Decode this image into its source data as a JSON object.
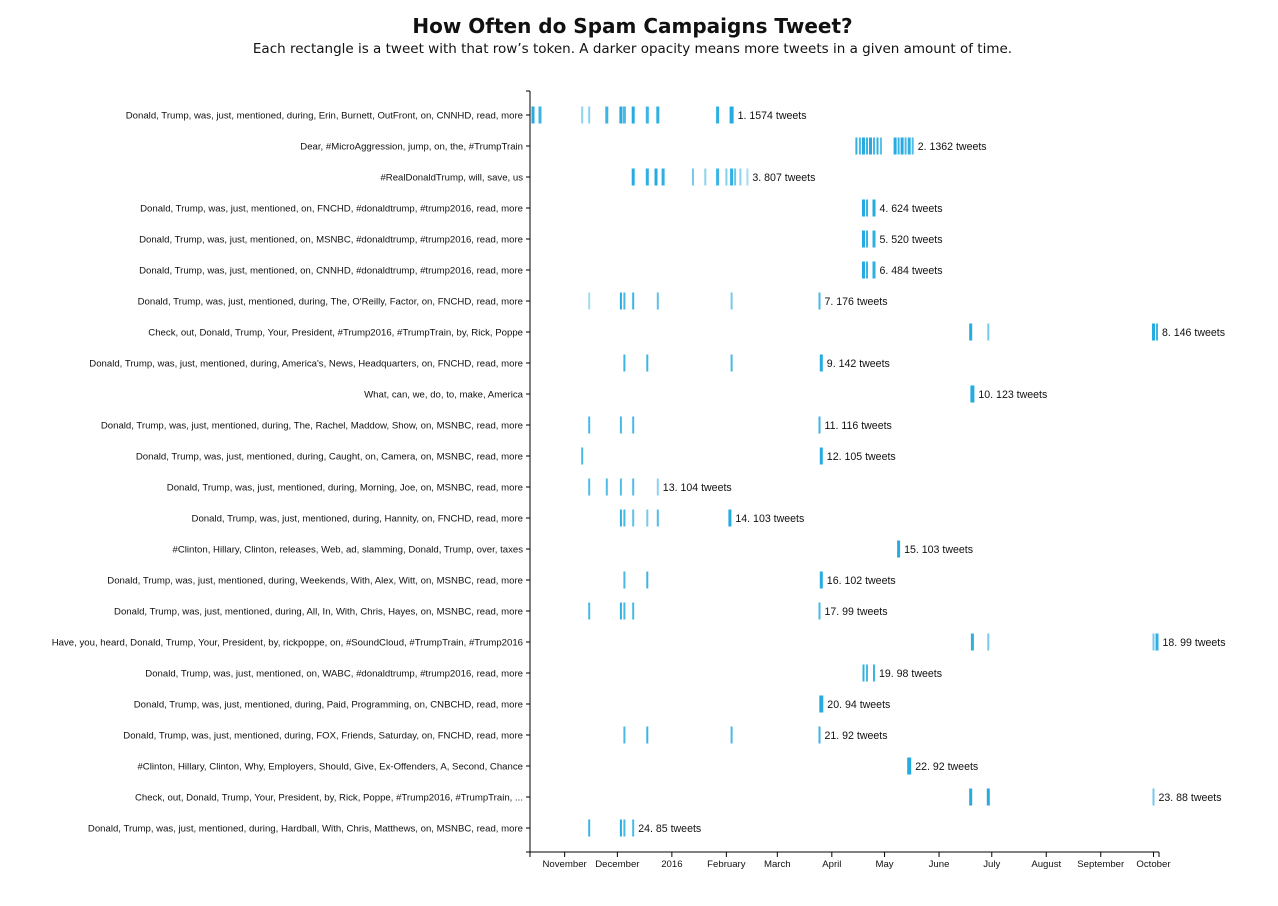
{
  "chart_data": {
    "type": "timeline-strip",
    "title": "How Often do Spam Campaigns Tweet?",
    "subtitle": "Each rectangle is a tweet with that row’s token. A darker opacity means more tweets in a given amount of time.",
    "x_axis": {
      "ticks": [
        "November",
        "December",
        "2016",
        "February",
        "March",
        "April",
        "May",
        "June",
        "July",
        "August",
        "September",
        "October"
      ],
      "range": [
        "2015-10-14",
        "2016-10-03"
      ]
    },
    "mark_color": "#1aa7df",
    "rows": [
      {
        "label": "Donald, Trump, was, just, mentioned, during, Erin, Burnett, OutFront, on, CNNHD, read, more",
        "count_label": "1. 1574 tweets",
        "ticks": [
          [
            "2015-10-14",
            0.95,
            3
          ],
          [
            "2015-10-18",
            0.85,
            3
          ],
          [
            "2015-11-11",
            0.5,
            2
          ],
          [
            "2015-11-15",
            0.5,
            2
          ],
          [
            "2015-11-25",
            0.85,
            3
          ],
          [
            "2015-12-03",
            0.95,
            3
          ],
          [
            "2015-12-05",
            0.8,
            3
          ],
          [
            "2015-12-10",
            0.95,
            3
          ],
          [
            "2015-12-18",
            0.85,
            3
          ],
          [
            "2015-12-24",
            0.9,
            3
          ],
          [
            "2016-01-27",
            0.9,
            3
          ],
          [
            "2016-02-04",
            0.95,
            4
          ]
        ]
      },
      {
        "label": "Dear, #MicroAggression, jump, on, the, #TrumpTrain",
        "count_label": "2. 1362 tweets",
        "ticks": [
          [
            "2016-04-15",
            0.9,
            2
          ],
          [
            "2016-04-17",
            0.8,
            2
          ],
          [
            "2016-04-19",
            0.95,
            3
          ],
          [
            "2016-04-21",
            0.85,
            2
          ],
          [
            "2016-04-23",
            0.95,
            3
          ],
          [
            "2016-04-25",
            0.8,
            2
          ],
          [
            "2016-04-27",
            0.9,
            2
          ],
          [
            "2016-04-29",
            0.7,
            2
          ],
          [
            "2016-05-07",
            0.95,
            3
          ],
          [
            "2016-05-09",
            0.85,
            2
          ],
          [
            "2016-05-11",
            0.95,
            3
          ],
          [
            "2016-05-13",
            0.8,
            2
          ],
          [
            "2016-05-15",
            0.9,
            3
          ],
          [
            "2016-05-17",
            0.75,
            2
          ]
        ]
      },
      {
        "label": "#RealDonaldTrump, will, save, us",
        "count_label": "3. 807 tweets",
        "ticks": [
          [
            "2015-12-10",
            0.95,
            3
          ],
          [
            "2015-12-18",
            0.9,
            3
          ],
          [
            "2015-12-23",
            0.95,
            3
          ],
          [
            "2015-12-27",
            0.9,
            3
          ],
          [
            "2016-01-13",
            0.6,
            2
          ],
          [
            "2016-01-20",
            0.5,
            2
          ],
          [
            "2016-01-27",
            0.85,
            3
          ],
          [
            "2016-02-01",
            0.55,
            2
          ],
          [
            "2016-02-04",
            0.9,
            3
          ],
          [
            "2016-02-06",
            0.65,
            2
          ],
          [
            "2016-02-09",
            0.5,
            2
          ],
          [
            "2016-02-13",
            0.4,
            2
          ]
        ]
      },
      {
        "label": "Donald, Trump, was, just, mentioned, on, FNCHD, #donaldtrump, #trump2016, read, more",
        "count_label": "4. 624 tweets",
        "ticks": [
          [
            "2016-04-19",
            0.95,
            3
          ],
          [
            "2016-04-21",
            0.85,
            2
          ],
          [
            "2016-04-25",
            0.95,
            3
          ]
        ]
      },
      {
        "label": "Donald, Trump, was, just, mentioned, on, MSNBC, #donaldtrump, #trump2016, read, more",
        "count_label": "5. 520 tweets",
        "ticks": [
          [
            "2016-04-19",
            0.95,
            3
          ],
          [
            "2016-04-21",
            0.85,
            2
          ],
          [
            "2016-04-25",
            0.9,
            3
          ]
        ]
      },
      {
        "label": "Donald, Trump, was, just, mentioned, on, CNNHD, #donaldtrump, #trump2016, read, more",
        "count_label": "6. 484 tweets",
        "ticks": [
          [
            "2016-04-19",
            0.95,
            3
          ],
          [
            "2016-04-21",
            0.85,
            2
          ],
          [
            "2016-04-25",
            0.9,
            3
          ]
        ]
      },
      {
        "label": "Donald, Trump, was, just, mentioned, during, The, O'Reilly, Factor, on, FNCHD, read, more",
        "count_label": "7. 176 tweets",
        "ticks": [
          [
            "2015-11-15",
            0.4,
            2
          ],
          [
            "2015-12-03",
            0.95,
            2
          ],
          [
            "2015-12-05",
            0.8,
            2
          ],
          [
            "2015-12-10",
            0.85,
            2
          ],
          [
            "2015-12-24",
            0.7,
            2
          ],
          [
            "2016-02-04",
            0.6,
            2
          ],
          [
            "2016-03-25",
            0.8,
            2
          ]
        ]
      },
      {
        "label": "Check, out, Donald, Trump, Your, President, #Trump2016, #TrumpTrain, by, Rick, Poppe",
        "count_label": "8. 146 tweets",
        "ticks": [
          [
            "2016-06-19",
            0.95,
            3
          ],
          [
            "2016-06-29",
            0.6,
            2
          ],
          [
            "2016-10-01",
            0.95,
            3
          ],
          [
            "2016-10-03",
            0.85,
            2
          ]
        ]
      },
      {
        "label": "Donald, Trump, was, just, mentioned, during, America's, News, Headquarters, on, FNCHD, read, more",
        "count_label": "9. 142 tweets",
        "ticks": [
          [
            "2015-12-05",
            0.85,
            2
          ],
          [
            "2015-12-18",
            0.85,
            2
          ],
          [
            "2016-02-04",
            0.8,
            2
          ],
          [
            "2016-03-26",
            0.95,
            3
          ]
        ]
      },
      {
        "label": "What, can, we, do, to, make, America",
        "count_label": "10. 123 tweets",
        "ticks": [
          [
            "2016-06-20",
            0.95,
            4
          ]
        ]
      },
      {
        "label": "Donald, Trump, was, just, mentioned, during, The, Rachel, Maddow, Show, on, MSNBC, read, more",
        "count_label": "11. 116 tweets",
        "ticks": [
          [
            "2015-11-15",
            0.8,
            2
          ],
          [
            "2015-12-03",
            0.8,
            2
          ],
          [
            "2015-12-10",
            0.8,
            2
          ],
          [
            "2016-03-25",
            0.85,
            2
          ]
        ]
      },
      {
        "label": "Donald, Trump, was, just, mentioned, during, Caught, on, Camera, on, MSNBC, read, more",
        "count_label": "12. 105 tweets",
        "ticks": [
          [
            "2015-11-11",
            0.8,
            2
          ],
          [
            "2016-03-26",
            0.95,
            3
          ]
        ]
      },
      {
        "label": "Donald, Trump, was, just, mentioned, during, Morning, Joe, on, MSNBC, read, more",
        "count_label": "13. 104 tweets",
        "ticks": [
          [
            "2015-11-15",
            0.75,
            2
          ],
          [
            "2015-11-25",
            0.75,
            2
          ],
          [
            "2015-12-03",
            0.75,
            2
          ],
          [
            "2015-12-10",
            0.75,
            2
          ],
          [
            "2015-12-24",
            0.5,
            2
          ]
        ]
      },
      {
        "label": "Donald, Trump, was, just, mentioned, during, Hannity, on, FNCHD, read, more",
        "count_label": "14. 103 tweets",
        "ticks": [
          [
            "2015-12-03",
            0.9,
            2
          ],
          [
            "2015-12-05",
            0.8,
            2
          ],
          [
            "2015-12-10",
            0.7,
            2
          ],
          [
            "2015-12-18",
            0.6,
            2
          ],
          [
            "2015-12-24",
            0.75,
            2
          ],
          [
            "2016-02-03",
            0.95,
            3
          ]
        ]
      },
      {
        "label": "#Clinton, Hillary, Clinton, releases, Web, ad, slamming, Donald, Trump, over, taxes",
        "count_label": "15. 103 tweets",
        "ticks": [
          [
            "2016-05-09",
            0.95,
            3
          ]
        ]
      },
      {
        "label": "Donald, Trump, was, just, mentioned, during, Weekends, With, Alex, Witt, on, MSNBC, read, more",
        "count_label": "16. 102 tweets",
        "ticks": [
          [
            "2015-12-05",
            0.8,
            2
          ],
          [
            "2015-12-18",
            0.85,
            2
          ],
          [
            "2016-03-26",
            0.95,
            3
          ]
        ]
      },
      {
        "label": "Donald, Trump, was, just, mentioned, during, All, In, With, Chris, Hayes, on, MSNBC, read, more",
        "count_label": "17. 99 tweets",
        "ticks": [
          [
            "2015-11-15",
            0.8,
            2
          ],
          [
            "2015-12-03",
            0.9,
            2
          ],
          [
            "2015-12-05",
            0.8,
            2
          ],
          [
            "2015-12-10",
            0.8,
            2
          ],
          [
            "2016-03-25",
            0.8,
            2
          ]
        ]
      },
      {
        "label": "Have, you, heard, Donald, Trump, Your, President, by, rickpoppe, on, #SoundCloud, #TrumpTrain, #Trump2016",
        "count_label": "18. 99 tweets",
        "ticks": [
          [
            "2016-06-20",
            0.9,
            3
          ],
          [
            "2016-06-29",
            0.6,
            2
          ],
          [
            "2016-10-01",
            0.6,
            2
          ],
          [
            "2016-10-03",
            0.9,
            3
          ]
        ]
      },
      {
        "label": "Donald, Trump, was, just, mentioned, on, WABC, #donaldtrump, #trump2016, read, more",
        "count_label": "19. 98 tweets",
        "ticks": [
          [
            "2016-04-19",
            0.9,
            2
          ],
          [
            "2016-04-21",
            0.8,
            2
          ],
          [
            "2016-04-25",
            0.85,
            2
          ]
        ]
      },
      {
        "label": "Donald, Trump, was, just, mentioned, during, Paid, Programming, on, CNBCHD, read, more",
        "count_label": "20. 94 tweets",
        "ticks": [
          [
            "2016-03-26",
            0.95,
            4
          ]
        ]
      },
      {
        "label": "Donald, Trump, was, just, mentioned, during, FOX, Friends, Saturday, on, FNCHD, read, more",
        "count_label": "21. 92 tweets",
        "ticks": [
          [
            "2015-12-05",
            0.8,
            2
          ],
          [
            "2015-12-18",
            0.85,
            2
          ],
          [
            "2016-02-04",
            0.8,
            2
          ],
          [
            "2016-03-25",
            0.85,
            2
          ]
        ]
      },
      {
        "label": "#Clinton, Hillary, Clinton, Why, Employers, Should, Give, Ex-Offenders, A, Second, Chance",
        "count_label": "22. 92 tweets",
        "ticks": [
          [
            "2016-05-15",
            0.95,
            4
          ]
        ]
      },
      {
        "label": "Check, out, Donald, Trump, Your, President, by, Rick, Poppe, #Trump2016, #TrumpTrain, ...",
        "count_label": "23. 88 tweets",
        "ticks": [
          [
            "2016-06-19",
            0.95,
            3
          ],
          [
            "2016-06-29",
            0.95,
            3
          ],
          [
            "2016-10-01",
            0.6,
            2
          ]
        ]
      },
      {
        "label": "Donald, Trump, was, just, mentioned, during, Hardball, With, Chris, Matthews, on, MSNBC, read, more",
        "count_label": "24. 85 tweets",
        "ticks": [
          [
            "2015-11-15",
            0.85,
            2
          ],
          [
            "2015-12-03",
            0.95,
            2
          ],
          [
            "2015-12-05",
            0.8,
            2
          ],
          [
            "2015-12-10",
            0.8,
            2
          ]
        ]
      }
    ]
  }
}
